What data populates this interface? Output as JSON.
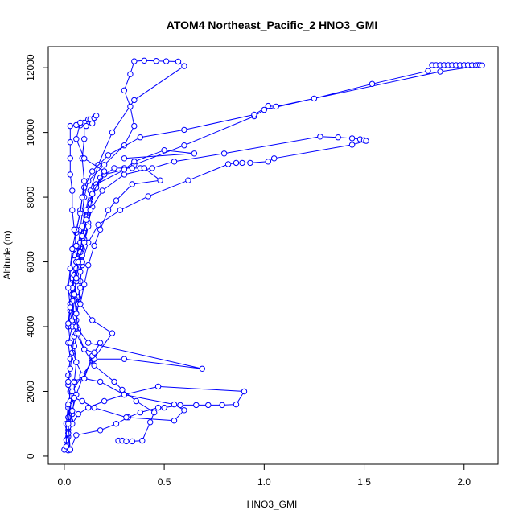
{
  "chart_data": {
    "type": "line",
    "title": "ATOM4 Northeast_Pacific_2 HNO3_GMI",
    "xlabel": "HNO3_GMI",
    "ylabel": "Altitude (m)",
    "xlim": [
      -0.08,
      2.17
    ],
    "ylim": [
      -250,
      12650
    ],
    "xticks": [
      0,
      0.5,
      1,
      1.5,
      2
    ],
    "xtick_labels": [
      "0.0",
      "0.5",
      "1.0",
      "1.5",
      "2.0"
    ],
    "yticks": [
      0,
      2000,
      4000,
      6000,
      8000,
      10000,
      12000
    ],
    "ytick_labels": [
      "0",
      "2000",
      "4000",
      "6000",
      "8000",
      "10000",
      "12000"
    ],
    "grid": false,
    "legend": "none",
    "series_color": "#0000ff",
    "series": [
      {
        "points": [
          [
            0.03,
            200
          ],
          [
            0.02,
            600
          ],
          [
            0.03,
            1100
          ],
          [
            0.02,
            1500
          ],
          [
            0.03,
            2000
          ],
          [
            0.02,
            2500
          ],
          [
            0.03,
            3000
          ],
          [
            0.02,
            3500
          ],
          [
            0.04,
            4000
          ],
          [
            0.03,
            4500
          ],
          [
            0.05,
            5000
          ],
          [
            0.04,
            5500
          ],
          [
            0.06,
            6000
          ],
          [
            0.07,
            6500
          ],
          [
            0.08,
            7000
          ],
          [
            0.09,
            7500
          ],
          [
            0.1,
            8000
          ],
          [
            0.12,
            8500
          ],
          [
            0.2,
            9000
          ],
          [
            0.3,
            9600
          ],
          [
            0.35,
            10200
          ],
          [
            0.33,
            10800
          ],
          [
            0.3,
            11300
          ],
          [
            0.33,
            11800
          ],
          [
            0.35,
            12200
          ],
          [
            0.4,
            12220
          ],
          [
            0.46,
            12210
          ],
          [
            0.51,
            12200
          ],
          [
            0.57,
            12190
          ],
          [
            0.6,
            12050
          ],
          [
            0.35,
            11000
          ],
          [
            0.24,
            10000
          ],
          [
            0.17,
            9000
          ],
          [
            0.13,
            8200
          ],
          [
            0.09,
            7100
          ],
          [
            0.06,
            6000
          ],
          [
            0.04,
            5000
          ],
          [
            0.02,
            4000
          ]
        ]
      },
      {
        "points": [
          [
            0.01,
            300
          ],
          [
            0.02,
            800
          ],
          [
            0.04,
            1300
          ],
          [
            0.05,
            1800
          ],
          [
            0.05,
            2300
          ],
          [
            0.06,
            2900
          ],
          [
            0.05,
            3400
          ],
          [
            0.07,
            3900
          ],
          [
            0.06,
            4400
          ],
          [
            0.07,
            4900
          ],
          [
            0.08,
            5400
          ],
          [
            0.09,
            5900
          ],
          [
            0.09,
            6400
          ],
          [
            0.1,
            6900
          ],
          [
            0.11,
            7400
          ],
          [
            0.13,
            7900
          ],
          [
            0.16,
            8400
          ],
          [
            0.35,
            9000
          ],
          [
            0.6,
            9600
          ],
          [
            0.95,
            10500
          ],
          [
            1.0,
            10700
          ],
          [
            1.25,
            11050
          ],
          [
            1.54,
            11500
          ],
          [
            1.82,
            11900
          ],
          [
            1.84,
            12080
          ],
          [
            1.86,
            12080
          ],
          [
            1.88,
            12080
          ],
          [
            1.9,
            12080
          ],
          [
            1.92,
            12080
          ],
          [
            1.94,
            12080
          ],
          [
            1.96,
            12080
          ],
          [
            1.98,
            12080
          ],
          [
            2.0,
            12080
          ],
          [
            2.02,
            12080
          ],
          [
            2.04,
            12080
          ],
          [
            2.06,
            12080
          ],
          [
            2.07,
            12080
          ],
          [
            2.08,
            12080
          ],
          [
            2.09,
            12070
          ],
          [
            1.88,
            11880
          ],
          [
            1.06,
            10800
          ],
          [
            1.02,
            10820
          ],
          [
            0.95,
            10550
          ],
          [
            0.6,
            10080
          ],
          [
            0.38,
            9850
          ],
          [
            0.22,
            9300
          ],
          [
            0.14,
            8800
          ],
          [
            0.1,
            8300
          ],
          [
            0.08,
            7600
          ],
          [
            0.06,
            6900
          ],
          [
            0.05,
            6200
          ]
        ]
      },
      {
        "points": [
          [
            0.02,
            180
          ],
          [
            0.02,
            700
          ],
          [
            0.02,
            1200
          ],
          [
            0.03,
            1700
          ],
          [
            0.02,
            2200
          ],
          [
            0.03,
            2700
          ],
          [
            0.04,
            3200
          ],
          [
            0.05,
            3700
          ],
          [
            0.06,
            4200
          ],
          [
            0.07,
            4700
          ],
          [
            0.08,
            5200
          ],
          [
            0.08,
            5700
          ],
          [
            0.09,
            6200
          ],
          [
            0.1,
            6700
          ],
          [
            0.12,
            7200
          ],
          [
            0.14,
            7700
          ],
          [
            0.19,
            8200
          ],
          [
            0.3,
            8700
          ],
          [
            0.44,
            8900
          ],
          [
            0.55,
            9100
          ],
          [
            0.8,
            9350
          ],
          [
            1.28,
            9870
          ],
          [
            1.37,
            9850
          ],
          [
            1.44,
            9820
          ],
          [
            1.48,
            9790
          ],
          [
            1.5,
            9760
          ],
          [
            1.51,
            9740
          ],
          [
            1.44,
            9620
          ],
          [
            1.05,
            9200
          ],
          [
            1.02,
            9100
          ],
          [
            0.93,
            9060
          ],
          [
            0.89,
            9060
          ],
          [
            0.86,
            9060
          ],
          [
            0.82,
            9020
          ],
          [
            0.62,
            8520
          ],
          [
            0.42,
            8030
          ],
          [
            0.28,
            7600
          ],
          [
            0.17,
            7150
          ],
          [
            0.12,
            6600
          ],
          [
            0.09,
            6000
          ],
          [
            0.06,
            5400
          ],
          [
            0.05,
            4800
          ],
          [
            0.04,
            4200
          ]
        ]
      },
      {
        "points": [
          [
            0.0,
            200
          ],
          [
            0.01,
            500
          ],
          [
            0.02,
            900
          ],
          [
            0.04,
            1400
          ],
          [
            0.06,
            1900
          ],
          [
            0.09,
            2400
          ],
          [
            0.14,
            2950
          ],
          [
            0.24,
            3800
          ],
          [
            0.14,
            4200
          ],
          [
            0.08,
            4700
          ],
          [
            0.04,
            5200
          ],
          [
            0.05,
            5600
          ],
          [
            0.07,
            6100
          ],
          [
            0.08,
            6600
          ],
          [
            0.09,
            7100
          ],
          [
            0.11,
            7600
          ],
          [
            0.14,
            8100
          ],
          [
            0.18,
            8600
          ],
          [
            0.25,
            8900
          ],
          [
            0.3,
            8900
          ],
          [
            0.34,
            8900
          ],
          [
            0.38,
            8900
          ],
          [
            0.4,
            8900
          ],
          [
            0.48,
            8520
          ],
          [
            0.34,
            8400
          ],
          [
            0.26,
            7900
          ],
          [
            0.22,
            7600
          ],
          [
            0.18,
            7000
          ],
          [
            0.15,
            6500
          ],
          [
            0.12,
            5900
          ],
          [
            0.1,
            5300
          ],
          [
            0.08,
            4700
          ]
        ]
      },
      {
        "points": [
          [
            0.03,
            200
          ],
          [
            0.06,
            650
          ],
          [
            0.18,
            800
          ],
          [
            0.26,
            1000
          ],
          [
            0.32,
            1200
          ],
          [
            0.38,
            1350
          ],
          [
            0.47,
            1500
          ],
          [
            0.5,
            1500
          ],
          [
            0.58,
            1580
          ],
          [
            0.66,
            1580
          ],
          [
            0.72,
            1580
          ],
          [
            0.79,
            1580
          ],
          [
            0.86,
            1600
          ],
          [
            0.9,
            2000
          ],
          [
            0.47,
            2150
          ],
          [
            0.3,
            1900
          ],
          [
            0.2,
            1700
          ],
          [
            0.12,
            1500
          ],
          [
            0.07,
            1300
          ],
          [
            0.04,
            1000
          ],
          [
            0.02,
            700
          ]
        ]
      },
      {
        "points": [
          [
            0.27,
            480
          ],
          [
            0.29,
            480
          ],
          [
            0.31,
            460
          ],
          [
            0.34,
            460
          ],
          [
            0.39,
            480
          ],
          [
            0.43,
            1050
          ],
          [
            0.45,
            1350
          ],
          [
            0.36,
            1700
          ],
          [
            0.29,
            2050
          ],
          [
            0.25,
            2300
          ],
          [
            0.15,
            2800
          ],
          [
            0.1,
            3300
          ],
          [
            0.06,
            3800
          ],
          [
            0.05,
            4300
          ],
          [
            0.04,
            4800
          ],
          [
            0.03,
            5300
          ],
          [
            0.03,
            5800
          ],
          [
            0.05,
            6400
          ]
        ]
      },
      {
        "points": [
          [
            0.01,
            300
          ],
          [
            0.01,
            1000
          ],
          [
            0.02,
            1600
          ],
          [
            0.05,
            1800
          ],
          [
            0.09,
            1700
          ],
          [
            0.15,
            1500
          ],
          [
            0.31,
            1200
          ],
          [
            0.55,
            1100
          ],
          [
            0.6,
            1420
          ],
          [
            0.55,
            1600
          ],
          [
            0.3,
            1900
          ],
          [
            0.18,
            2300
          ],
          [
            0.1,
            2400
          ],
          [
            0.06,
            2900
          ],
          [
            0.03,
            3500
          ],
          [
            0.02,
            4100
          ],
          [
            0.03,
            4700
          ],
          [
            0.04,
            5200
          ],
          [
            0.06,
            5800
          ],
          [
            0.08,
            6300
          ],
          [
            0.09,
            6800
          ],
          [
            0.11,
            7300
          ],
          [
            0.13,
            7800
          ],
          [
            0.16,
            8300
          ],
          [
            0.2,
            8700
          ],
          [
            0.3,
            8850
          ],
          [
            0.35,
            9100
          ],
          [
            0.5,
            9450
          ],
          [
            0.65,
            9350
          ],
          [
            0.3,
            9200
          ]
        ]
      },
      {
        "points": [
          [
            0.03,
            200
          ],
          [
            0.02,
            1000
          ],
          [
            0.04,
            2000
          ],
          [
            0.09,
            2500
          ],
          [
            0.15,
            3000
          ],
          [
            0.3,
            3000
          ],
          [
            0.69,
            2700
          ],
          [
            0.12,
            3500
          ],
          [
            0.06,
            4000
          ],
          [
            0.03,
            4600
          ],
          [
            0.02,
            5200
          ],
          [
            0.03,
            5800
          ],
          [
            0.04,
            6400
          ],
          [
            0.06,
            7000
          ],
          [
            0.08,
            7500
          ],
          [
            0.09,
            8000
          ],
          [
            0.1,
            8500
          ],
          [
            0.09,
            9200
          ],
          [
            0.1,
            9800
          ],
          [
            0.1,
            10300
          ],
          [
            0.12,
            10400
          ],
          [
            0.13,
            10400
          ],
          [
            0.15,
            10450
          ],
          [
            0.16,
            10520
          ],
          [
            0.14,
            10280
          ],
          [
            0.11,
            10200
          ],
          [
            0.08,
            10220
          ],
          [
            0.06,
            10230
          ],
          [
            0.03,
            10200
          ],
          [
            0.03,
            9700
          ],
          [
            0.03,
            9200
          ],
          [
            0.03,
            8700
          ],
          [
            0.04,
            8200
          ],
          [
            0.04,
            7600
          ],
          [
            0.05,
            7000
          ],
          [
            0.06,
            6500
          ]
        ]
      },
      {
        "points": [
          [
            0.02,
            2300
          ],
          [
            0.1,
            2400
          ],
          [
            0.14,
            3100
          ],
          [
            0.18,
            3500
          ],
          [
            0.15,
            3200
          ],
          [
            0.1,
            3300
          ],
          [
            0.07,
            3800
          ],
          [
            0.06,
            4400
          ],
          [
            0.05,
            5000
          ],
          [
            0.06,
            5500
          ],
          [
            0.07,
            6000
          ],
          [
            0.1,
            6600
          ],
          [
            0.12,
            7100
          ],
          [
            0.13,
            7600
          ],
          [
            0.14,
            8100
          ],
          [
            0.2,
            8800
          ],
          [
            0.1,
            9200
          ],
          [
            0.06,
            9800
          ],
          [
            0.08,
            10300
          ]
        ]
      }
    ]
  }
}
